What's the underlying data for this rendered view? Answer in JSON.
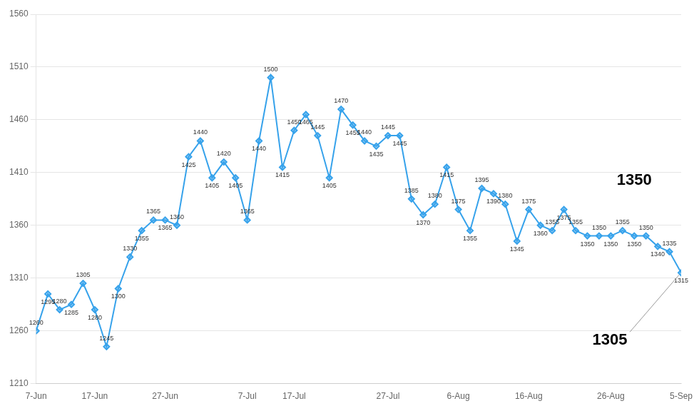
{
  "chart_data": {
    "type": "line",
    "categories": [
      "7-Jun",
      null,
      null,
      null,
      null,
      "17-Jun",
      null,
      null,
      null,
      null,
      null,
      "27-Jun",
      null,
      null,
      null,
      null,
      null,
      null,
      "7-Jul",
      null,
      null,
      null,
      "17-Jul",
      null,
      null,
      null,
      null,
      null,
      null,
      null,
      "27-Jul",
      null,
      null,
      null,
      null,
      null,
      "6-Aug",
      null,
      null,
      null,
      null,
      null,
      "16-Aug",
      null,
      null,
      null,
      null,
      null,
      null,
      "26-Aug",
      null,
      null,
      null,
      null,
      null,
      "5-Sep"
    ],
    "values": [
      1260,
      1295,
      1280,
      1285,
      1305,
      1280,
      1245,
      1300,
      1330,
      1355,
      1365,
      1365,
      1360,
      1425,
      1440,
      1405,
      1420,
      1405,
      1365,
      1440,
      1500,
      1415,
      1450,
      1465,
      1445,
      1405,
      1470,
      1455,
      1440,
      1435,
      1445,
      1445,
      1385,
      1370,
      1380,
      1415,
      1375,
      1355,
      1395,
      1390,
      1380,
      1345,
      1375,
      1360,
      1355,
      1375,
      1355,
      1350,
      1350,
      1350,
      1355,
      1350,
      1350,
      1340,
      1335,
      1315
    ],
    "ylim": [
      1210,
      1560
    ],
    "yticks": [
      1210,
      1260,
      1310,
      1360,
      1410,
      1460,
      1510,
      1560
    ],
    "grid": true,
    "marker": "diamond",
    "data_labels": true,
    "annotations": [
      "1305",
      "1350"
    ]
  }
}
